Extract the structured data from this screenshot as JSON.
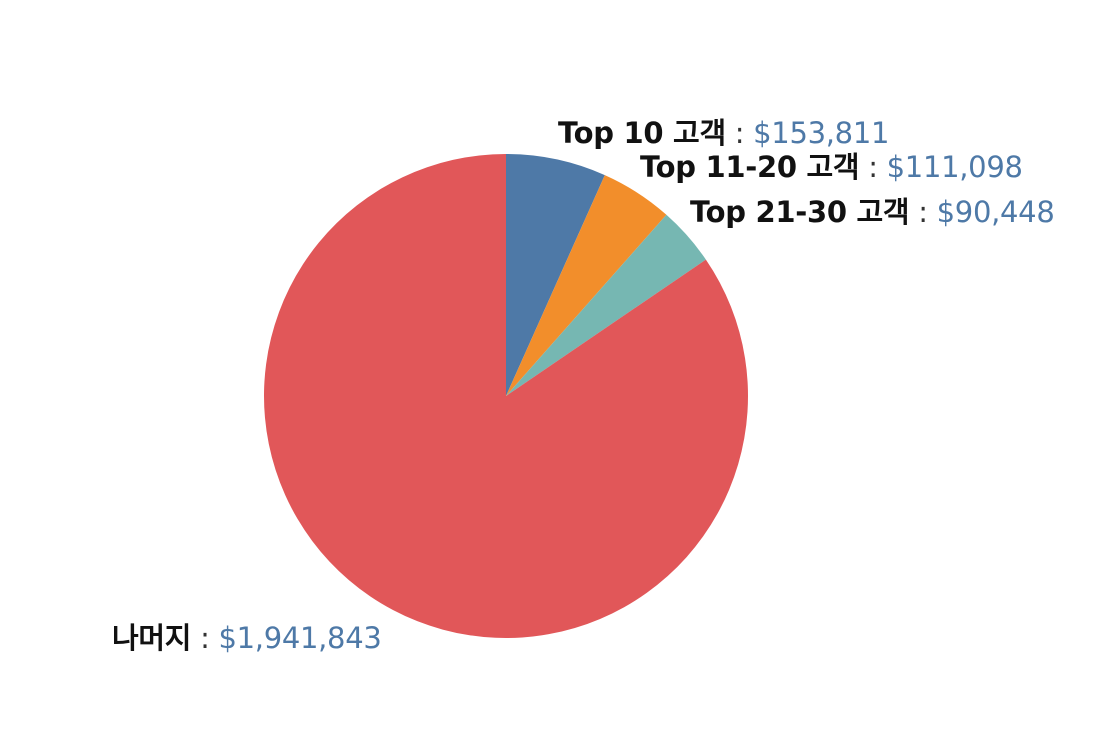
{
  "chart_data": {
    "type": "pie",
    "start_angle": "12 o'clock",
    "direction": "clockwise",
    "series": [
      {
        "label": "Top 10 고객",
        "value": 153811,
        "value_text": "$153,811",
        "color": "#4e79a7"
      },
      {
        "label": "Top 11-20 고객",
        "value": 111098,
        "value_text": "$111,098",
        "color": "#f28e2b"
      },
      {
        "label": "Top 21-30 고객",
        "value": 90448,
        "value_text": "$90,448",
        "color": "#76b7b2"
      },
      {
        "label": "나머지",
        "value": 1941843,
        "value_text": "$1,941,843",
        "color": "#e15759"
      }
    ],
    "label_separator": ":",
    "value_text_color": "#4e79a7"
  }
}
